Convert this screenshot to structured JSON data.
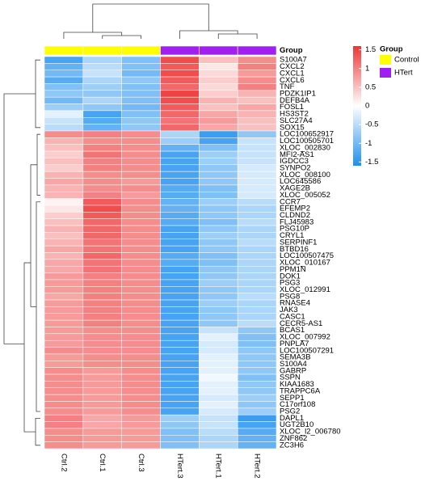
{
  "chart_data": {
    "type": "heatmap",
    "columns": [
      "Ctrl.2",
      "Ctrl.1",
      "Ctrl.3",
      "HTert.3",
      "HTert.1",
      "HTert.2"
    ],
    "column_groups": [
      "Control",
      "Control",
      "Control",
      "HTert",
      "HTert",
      "HTert"
    ],
    "group_legend": {
      "title": "Group",
      "names": [
        "Control",
        "HTert"
      ],
      "colors": [
        "#ffff00",
        "#a020f0"
      ]
    },
    "annotation_label": "Group",
    "rows": [
      "S100A7",
      "CXCL2",
      "CXCL1",
      "CXCL6",
      "TNF",
      "PDZK1IP1",
      "DEFB4A",
      "FOSL1",
      "HS3ST2",
      "SLC27A4",
      "SOX15",
      "LOC100652917",
      "LOC100505701",
      "XLOC_002830",
      "MFI2-AS1",
      "IGDCC3",
      "SYNPO2",
      "XLOC_008100",
      "LOC645586",
      "XAGE2B",
      "XLOC_005052",
      "CCR7",
      "EFEMP2",
      "CLDND2",
      "FLJ45983",
      "PSG10P",
      "CRYL1",
      "SERPINF1",
      "BTBD16",
      "LOC100507475",
      "XLOC_010167",
      "PPM1N",
      "DOK1",
      "PSG3",
      "XLOC_012991",
      "PSG8",
      "RNASE4",
      "JAK3",
      "CASC1",
      "CECR5-AS1",
      "BCAS1",
      "XLOC_007992",
      "PNPLA7",
      "LOC100507291",
      "SEMA3B",
      "S100A4",
      "GABRP",
      "SSPN",
      "KIAA1683",
      "TRAPPC6A",
      "SEPP1",
      "C17orf108",
      "PSG2",
      "DAPL1",
      "UGT2B10",
      "XLOC_l2_006780",
      "ZNF862",
      "ZC3H6"
    ],
    "values": [
      [
        -1.3,
        -0.6,
        -0.9,
        1.4,
        0.5,
        0.9
      ],
      [
        -1.1,
        -0.5,
        -0.9,
        1.3,
        0.2,
        1.0
      ],
      [
        -1.0,
        -0.4,
        -1.0,
        1.4,
        0.3,
        0.8
      ],
      [
        -1.2,
        -0.6,
        -0.8,
        1.3,
        0.4,
        0.9
      ],
      [
        -0.9,
        -0.7,
        -0.9,
        1.2,
        0.3,
        1.0
      ],
      [
        -0.8,
        -0.8,
        -0.9,
        1.5,
        0.4,
        0.6
      ],
      [
        -1.0,
        -0.6,
        -0.9,
        1.4,
        0.6,
        0.5
      ],
      [
        -0.7,
        -0.8,
        -1.0,
        1.3,
        0.5,
        0.7
      ],
      [
        -0.2,
        -1.3,
        -0.9,
        1.2,
        0.7,
        0.6
      ],
      [
        -0.4,
        -1.2,
        -0.8,
        1.1,
        0.8,
        0.5
      ],
      [
        -0.5,
        -1.1,
        -0.8,
        1.2,
        0.7,
        0.5
      ],
      [
        0.9,
        1.0,
        0.9,
        -0.6,
        -1.4,
        -0.8
      ],
      [
        0.6,
        0.9,
        0.9,
        -0.7,
        -1.3,
        -0.4
      ],
      [
        0.5,
        1.0,
        0.9,
        -1.1,
        -0.9,
        -0.4
      ],
      [
        0.4,
        1.1,
        0.9,
        -1.3,
        -0.7,
        -0.4
      ],
      [
        0.5,
        1.0,
        0.9,
        -1.3,
        -0.7,
        -0.4
      ],
      [
        0.4,
        1.0,
        0.9,
        -1.3,
        -0.8,
        -0.3
      ],
      [
        0.6,
        0.9,
        0.9,
        -1.3,
        -0.8,
        -0.3
      ],
      [
        0.7,
        0.9,
        0.8,
        -1.3,
        -0.8,
        -0.3
      ],
      [
        0.6,
        0.9,
        0.9,
        -1.2,
        -0.9,
        -0.3
      ],
      [
        0.6,
        1.0,
        0.8,
        -1.2,
        -0.9,
        -0.3
      ],
      [
        0.1,
        1.3,
        0.9,
        -1.1,
        -0.7,
        -0.5
      ],
      [
        0.2,
        1.4,
        0.9,
        -1.1,
        -0.8,
        -0.6
      ],
      [
        0.4,
        1.3,
        0.9,
        -1.2,
        -0.8,
        -0.6
      ],
      [
        0.5,
        1.2,
        0.9,
        -1.2,
        -0.9,
        -0.5
      ],
      [
        0.6,
        1.2,
        0.9,
        -1.3,
        -0.8,
        -0.6
      ],
      [
        0.5,
        1.2,
        0.9,
        -1.3,
        -0.7,
        -0.6
      ],
      [
        0.6,
        1.1,
        0.9,
        -1.3,
        -0.8,
        -0.5
      ],
      [
        0.7,
        1.1,
        0.9,
        -1.3,
        -0.8,
        -0.6
      ],
      [
        0.6,
        1.2,
        0.9,
        -1.2,
        -0.9,
        -0.6
      ],
      [
        0.7,
        1.1,
        0.9,
        -1.2,
        -0.9,
        -0.6
      ],
      [
        0.7,
        1.1,
        0.9,
        -1.3,
        -0.8,
        -0.6
      ],
      [
        0.8,
        1.0,
        0.9,
        -1.3,
        -0.8,
        -0.6
      ],
      [
        0.8,
        1.0,
        0.9,
        -1.3,
        -0.7,
        -0.6
      ],
      [
        0.8,
        1.0,
        0.9,
        -1.3,
        -0.8,
        -0.6
      ],
      [
        0.7,
        1.0,
        0.9,
        -1.3,
        -0.8,
        -0.5
      ],
      [
        0.8,
        1.0,
        0.9,
        -1.3,
        -0.7,
        -0.6
      ],
      [
        0.8,
        1.0,
        0.9,
        -1.3,
        -0.8,
        -0.6
      ],
      [
        0.8,
        1.0,
        0.9,
        -1.3,
        -0.8,
        -0.6
      ],
      [
        0.8,
        1.0,
        0.9,
        -1.3,
        -0.8,
        -0.5
      ],
      [
        0.8,
        0.9,
        0.9,
        -1.3,
        -0.4,
        -0.8
      ],
      [
        0.8,
        0.9,
        0.9,
        -1.3,
        -0.2,
        -0.9
      ],
      [
        0.8,
        0.9,
        0.9,
        -1.3,
        -0.3,
        -0.9
      ],
      [
        0.9,
        0.9,
        0.9,
        -1.3,
        -0.3,
        -0.8
      ],
      [
        0.8,
        0.9,
        0.9,
        -1.3,
        -0.2,
        -0.8
      ],
      [
        0.8,
        0.9,
        0.9,
        -1.3,
        -0.2,
        -0.8
      ],
      [
        0.9,
        0.8,
        0.9,
        -1.3,
        -0.2,
        -0.8
      ],
      [
        0.9,
        0.8,
        0.9,
        -1.3,
        -0.1,
        -0.9
      ],
      [
        0.9,
        0.8,
        0.9,
        -1.3,
        -0.2,
        -0.8
      ],
      [
        0.9,
        0.8,
        0.9,
        -1.3,
        -0.2,
        -0.8
      ],
      [
        0.9,
        0.8,
        0.9,
        -1.3,
        -0.3,
        -0.7
      ],
      [
        0.9,
        0.8,
        0.9,
        -1.3,
        -0.2,
        -0.8
      ],
      [
        0.9,
        0.8,
        0.9,
        -1.3,
        -0.3,
        -0.7
      ],
      [
        1.0,
        0.7,
        0.8,
        -0.7,
        -0.4,
        -1.4
      ],
      [
        1.0,
        0.7,
        0.8,
        -0.8,
        -0.4,
        -1.3
      ],
      [
        0.9,
        0.8,
        0.8,
        -0.9,
        -0.5,
        -1.2
      ],
      [
        0.9,
        0.8,
        0.8,
        -0.9,
        -0.6,
        -1.1
      ],
      [
        0.9,
        0.8,
        0.8,
        -0.9,
        -0.6,
        -1.1
      ]
    ],
    "colors": [
      "#1e8fef",
      "#ffffff",
      "#ee3535"
    ],
    "clim": [
      -1.6,
      1.6
    ],
    "colorbar_ticks": [
      1.5,
      1,
      0.5,
      0,
      -0.5,
      -1,
      -1.5
    ]
  }
}
